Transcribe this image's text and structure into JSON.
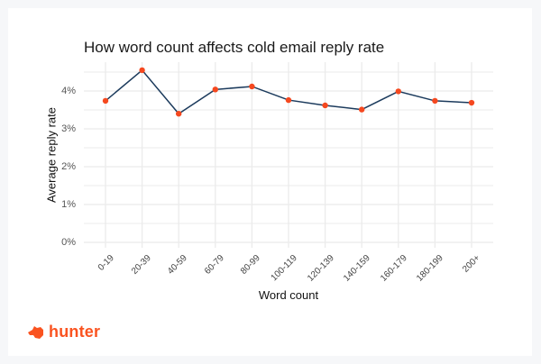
{
  "colors": {
    "line": "#1b3a5c",
    "point": "#f5481f",
    "grid": "#ebebeb",
    "brand": "#fa5320"
  },
  "brand": {
    "name": "hunter",
    "icon": "fox-head-icon"
  },
  "chart_data": {
    "type": "line",
    "title": "How word count affects cold email reply rate",
    "xlabel": "Word count",
    "ylabel": "Average reply rate",
    "categories": [
      "0-19",
      "20-39",
      "40-59",
      "60-79",
      "80-99",
      "100-119",
      "120-139",
      "140-159",
      "160-179",
      "180-199",
      "200+"
    ],
    "values": [
      3.74,
      4.55,
      3.4,
      4.04,
      4.12,
      3.76,
      3.62,
      3.51,
      3.99,
      3.74,
      3.69
    ],
    "value_unit": "%",
    "yticks": [
      "0%",
      "1%",
      "2%",
      "3%",
      "4%"
    ],
    "ylim": [
      0,
      4.7
    ],
    "grid": true,
    "legend": null
  }
}
